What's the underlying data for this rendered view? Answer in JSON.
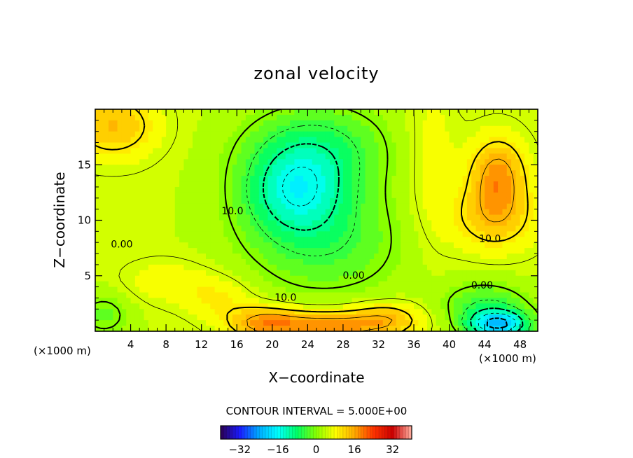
{
  "chart_data": {
    "type": "heatmap",
    "subtype": "filled-contour",
    "title": "zonal velocity",
    "xlabel": "X−coordinate",
    "ylabel": "Z−coordinate",
    "x_unit_left": "(×1000 m)",
    "x_unit_right": "(×1000 m)",
    "xlim": [
      0,
      50
    ],
    "ylim": [
      0,
      20
    ],
    "x_ticks": [
      4,
      8,
      12,
      16,
      20,
      24,
      28,
      32,
      36,
      40,
      44,
      48
    ],
    "x_tick_labels": [
      "4",
      "8",
      "12",
      "16",
      "20",
      "24",
      "28",
      "32",
      "36",
      "40",
      "44",
      "48"
    ],
    "y_ticks": [
      5,
      10,
      15
    ],
    "y_tick_labels": [
      "5",
      "10",
      "15"
    ],
    "contour_interval_text": "CONTOUR INTERVAL = 5.000E+00",
    "contour_interval": 5,
    "contour_labels": [
      {
        "text": "0.00",
        "x": 3,
        "z": 7.8
      },
      {
        "text": "10.0",
        "x": 15.5,
        "z": 10.8
      },
      {
        "text": "0.00",
        "x": 29.2,
        "z": 5.0
      },
      {
        "text": "10.0",
        "x": 21.5,
        "z": 3.0
      },
      {
        "text": "10.0",
        "x": 44.6,
        "z": 8.3
      },
      {
        "text": "0.00",
        "x": 43.7,
        "z": 4.1
      }
    ],
    "colorbar": {
      "range": [
        -40,
        40
      ],
      "ticks": [
        -32,
        -16,
        0,
        16,
        32
      ],
      "tick_labels": [
        "−32",
        "−16",
        "0",
        "16",
        "32"
      ],
      "colormap": [
        "#2b0050",
        "#1a1aff",
        "#00aaff",
        "#00ffff",
        "#00ff66",
        "#88ff00",
        "#ffff00",
        "#ffaa00",
        "#ff3300",
        "#cc0000",
        "#ffb0a0"
      ]
    },
    "field_sources": [
      {
        "x": 45.5,
        "z": 14,
        "u": 13,
        "sx": 3.2,
        "sz": 3.5
      },
      {
        "x": 45,
        "z": 10,
        "u": 8,
        "sx": 5,
        "sz": 3
      },
      {
        "x": 22.5,
        "z": 12.5,
        "u": -14,
        "sx": 6,
        "sz": 4
      },
      {
        "x": 26,
        "z": 8,
        "u": -8,
        "sx": 9,
        "sz": 5
      },
      {
        "x": 25,
        "z": 16.5,
        "u": -10,
        "sx": 8,
        "sz": 4
      },
      {
        "x": 45.5,
        "z": 0.6,
        "u": -24,
        "sx": 3.5,
        "sz": 1.3
      },
      {
        "x": 44,
        "z": 2.5,
        "u": -8,
        "sx": 5,
        "sz": 2
      },
      {
        "x": 26,
        "z": 0.5,
        "u": 14,
        "sx": 7,
        "sz": 1.5
      },
      {
        "x": 19,
        "z": 0.8,
        "u": 10,
        "sx": 4,
        "sz": 1.5
      },
      {
        "x": 33,
        "z": 1.2,
        "u": 8,
        "sx": 4,
        "sz": 1.5
      },
      {
        "x": 2,
        "z": 18.5,
        "u": 10,
        "sx": 5,
        "sz": 3
      },
      {
        "x": 38,
        "z": 15,
        "u": 4,
        "sx": 3,
        "sz": 8
      },
      {
        "x": 1,
        "z": 1.5,
        "u": -6,
        "sx": 3,
        "sz": 2
      },
      {
        "x": 8,
        "z": 4.5,
        "u": 4,
        "sx": 5,
        "sz": 2
      },
      {
        "x": 14,
        "z": 3,
        "u": 5,
        "sx": 4,
        "sz": 2
      }
    ],
    "field_background": 4,
    "grid": false
  }
}
